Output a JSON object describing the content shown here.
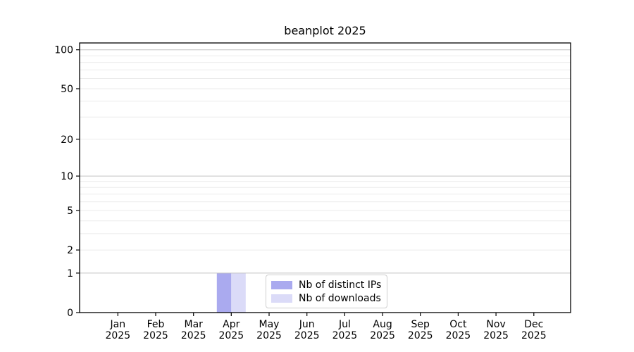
{
  "title": "beanplot 2025",
  "chart_data": {
    "type": "bar",
    "title": "beanplot 2025",
    "categories": [
      "Jan",
      "Feb",
      "Mar",
      "Apr",
      "May",
      "Jun",
      "Jul",
      "Aug",
      "Sep",
      "Oct",
      "Nov",
      "Dec"
    ],
    "year_label": "2025",
    "series": [
      {
        "name": "Nb of distinct IPs",
        "color": "#aaaaef",
        "values": [
          0,
          0,
          0,
          1,
          0,
          0,
          0,
          0,
          0,
          0,
          0,
          0
        ]
      },
      {
        "name": "Nb of downloads",
        "color": "#dbdbf8",
        "values": [
          0,
          0,
          0,
          1,
          0,
          0,
          0,
          0,
          0,
          0,
          0,
          0
        ]
      }
    ],
    "scale": "log1p",
    "ylim": [
      0,
      112.9
    ],
    "y_ticks": [
      0,
      1,
      2,
      5,
      10,
      20,
      50,
      100
    ],
    "y_major_gridlines": [
      1,
      10,
      100
    ],
    "y_minor_gridlines": [
      2,
      3,
      4,
      5,
      6,
      7,
      8,
      9,
      20,
      30,
      40,
      50,
      60,
      70,
      80,
      90
    ],
    "grid": true,
    "legend_position": "lower center inside"
  },
  "colors": {
    "background": "#ffffff",
    "axis": "#000000",
    "text": "#000000",
    "major_grid": "#c3c3c3",
    "minor_grid": "#ebebeb",
    "legend_border": "#cfcfcf"
  }
}
